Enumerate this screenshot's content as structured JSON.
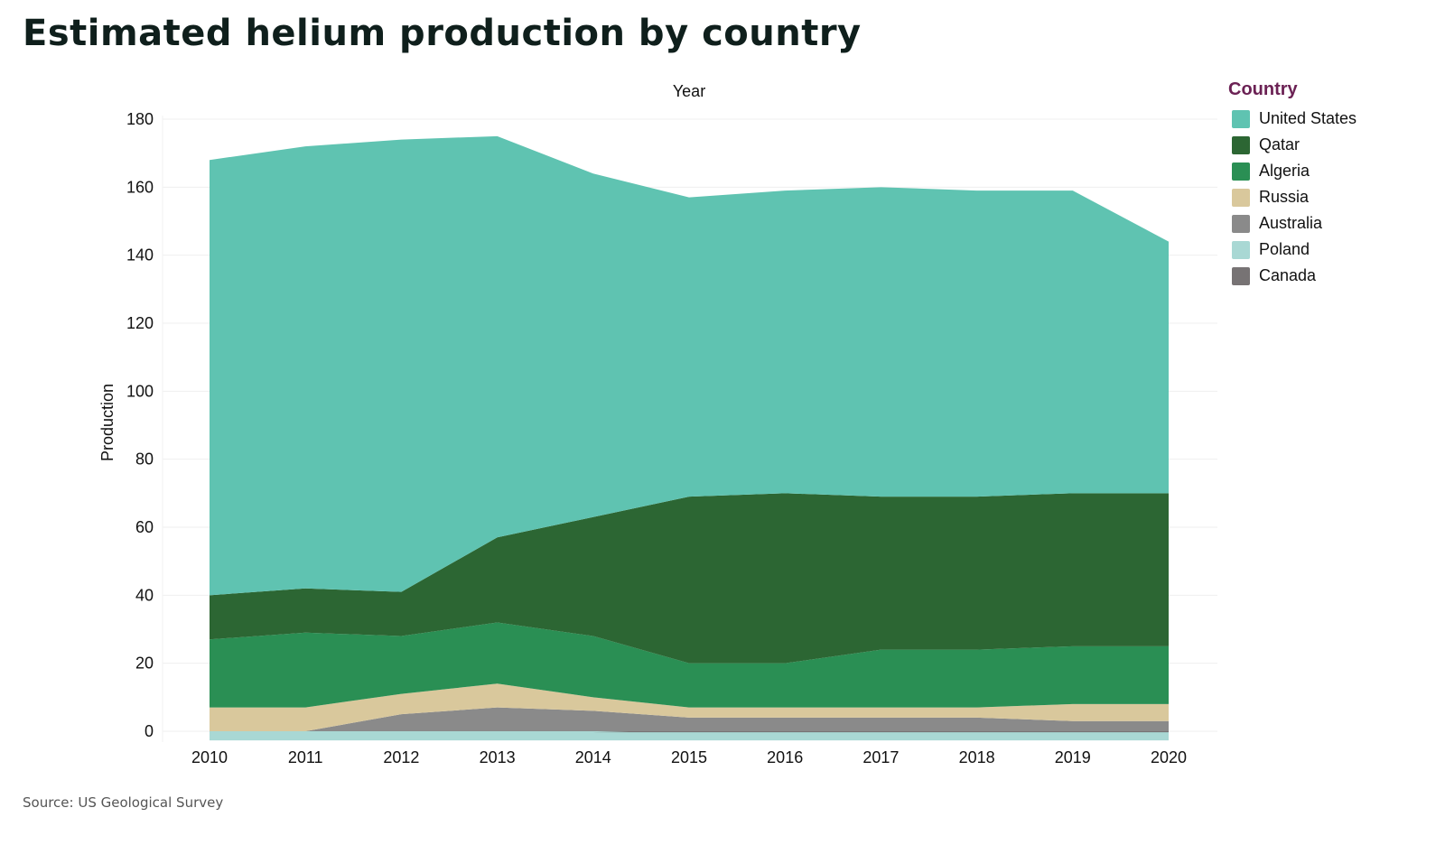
{
  "title": "Estimated helium production by country",
  "source": "Source: US Geological Survey",
  "legend": {
    "title": "Country",
    "items": [
      {
        "label": "United States",
        "color": "#5fc3b1"
      },
      {
        "label": "Qatar",
        "color": "#2c6633"
      },
      {
        "label": "Algeria",
        "color": "#2a8f54"
      },
      {
        "label": "Russia",
        "color": "#d9c89c"
      },
      {
        "label": "Australia",
        "color": "#8a8a8a"
      },
      {
        "label": "Poland",
        "color": "#a9d8d4"
      },
      {
        "label": "Canada",
        "color": "#777374"
      }
    ]
  },
  "chart_data": {
    "type": "area",
    "stacked": true,
    "title": "Estimated helium production by country",
    "xlabel": "Year",
    "ylabel": "Production",
    "ylim": [
      0,
      180
    ],
    "yticks": [
      0,
      20,
      40,
      60,
      80,
      100,
      120,
      140,
      160,
      180
    ],
    "categories": [
      "2010",
      "2011",
      "2012",
      "2013",
      "2014",
      "2015",
      "2016",
      "2017",
      "2018",
      "2019",
      "2020"
    ],
    "grid": true,
    "legend_position": "right",
    "series": [
      {
        "name": "Canada",
        "values": [
          0,
          0,
          0,
          0,
          0,
          0.5,
          0.5,
          0.5,
          0.5,
          0.5,
          0.5
        ]
      },
      {
        "name": "Poland",
        "values": [
          2,
          2,
          2,
          2,
          2,
          1.5,
          1.5,
          1.5,
          1.5,
          1,
          1
        ]
      },
      {
        "name": "Australia",
        "values": [
          0,
          0,
          5,
          7,
          6,
          4,
          4,
          4,
          4,
          4,
          4
        ]
      },
      {
        "name": "Russia",
        "values": [
          6,
          6,
          6,
          7,
          4,
          3,
          3,
          3,
          3,
          5,
          5
        ]
      },
      {
        "name": "Algeria",
        "values": [
          19,
          21,
          16,
          17,
          17,
          11,
          11,
          15,
          15,
          15,
          15
        ]
      },
      {
        "name": "Qatar",
        "values": [
          13,
          13,
          13,
          25,
          35,
          49,
          50,
          45,
          45,
          45,
          45
        ]
      },
      {
        "name": "United States",
        "values": [
          128,
          130,
          133,
          118,
          101,
          88,
          89,
          91,
          90,
          89,
          74
        ]
      }
    ],
    "stack_tops": {
      "Canada": [
        0,
        0,
        0,
        0,
        0,
        0.5,
        0.5,
        0.5,
        0.5,
        0.5,
        0.5
      ],
      "Poland": [
        -0.5,
        -0.5,
        -0.5,
        -0.5,
        -0.5,
        0,
        0,
        0,
        0,
        0,
        0
      ],
      "Australia": [
        0,
        0,
        5,
        7,
        6,
        4,
        4,
        4,
        4,
        3,
        3
      ],
      "Russia": [
        7,
        7,
        11,
        14,
        10,
        7,
        7,
        7,
        7,
        8,
        8
      ],
      "Algeria": [
        27,
        29,
        28,
        32,
        28,
        20,
        20,
        24,
        24,
        25,
        25
      ],
      "Qatar": [
        40,
        42,
        41,
        57,
        63,
        69,
        70,
        69,
        69,
        70,
        70
      ],
      "United States": [
        168,
        172,
        174,
        175,
        164,
        157,
        159,
        160,
        159,
        159,
        144
      ]
    }
  }
}
